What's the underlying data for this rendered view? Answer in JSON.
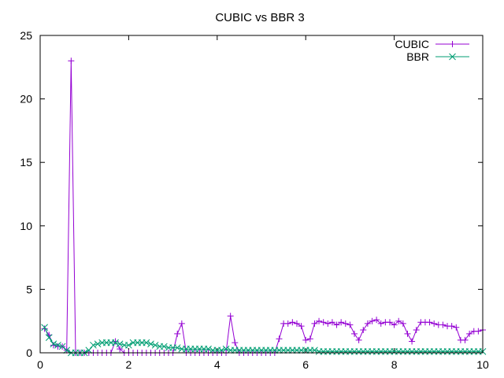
{
  "chart_data": {
    "type": "line",
    "title": "CUBIC vs BBR 3",
    "xlabel": "",
    "ylabel": "",
    "xlim": [
      0,
      10
    ],
    "ylim": [
      0,
      25
    ],
    "xticks": [
      0,
      2,
      4,
      6,
      8,
      10
    ],
    "yticks": [
      0,
      5,
      10,
      15,
      20,
      25
    ],
    "grid": false,
    "legend_position": "top-right",
    "series": [
      {
        "name": "CUBIC",
        "color": "#9400d3",
        "marker": "plus",
        "x": [
          0.1,
          0.2,
          0.3,
          0.4,
          0.5,
          0.6,
          0.7,
          0.8,
          0.9,
          1.0,
          1.1,
          1.2,
          1.3,
          1.4,
          1.5,
          1.6,
          1.7,
          1.8,
          1.9,
          2.0,
          2.1,
          2.2,
          2.3,
          2.4,
          2.5,
          2.6,
          2.7,
          2.8,
          2.9,
          3.0,
          3.1,
          3.2,
          3.3,
          3.4,
          3.5,
          3.6,
          3.7,
          3.8,
          3.9,
          4.0,
          4.1,
          4.2,
          4.3,
          4.4,
          4.5,
          4.6,
          4.7,
          4.8,
          4.9,
          5.0,
          5.1,
          5.2,
          5.3,
          5.4,
          5.5,
          5.6,
          5.7,
          5.8,
          5.9,
          6.0,
          6.1,
          6.2,
          6.3,
          6.4,
          6.5,
          6.6,
          6.7,
          6.8,
          6.9,
          7.0,
          7.1,
          7.2,
          7.3,
          7.4,
          7.5,
          7.6,
          7.7,
          7.8,
          7.9,
          8.0,
          8.1,
          8.2,
          8.3,
          8.4,
          8.5,
          8.6,
          8.7,
          8.8,
          8.9,
          9.0,
          9.1,
          9.2,
          9.3,
          9.4,
          9.5,
          9.6,
          9.7,
          9.8,
          9.9,
          10.0
        ],
        "y": [
          1.9,
          1.4,
          0.6,
          0.5,
          0.5,
          0.2,
          23.0,
          0.0,
          0.0,
          0.0,
          0.0,
          0.0,
          0.0,
          0.0,
          0.0,
          0.0,
          0.9,
          0.3,
          0.0,
          0.0,
          0.0,
          0.0,
          0.0,
          0.0,
          0.0,
          0.0,
          0.0,
          0.0,
          0.0,
          0.0,
          1.5,
          2.3,
          0.0,
          0.0,
          0.0,
          0.0,
          0.0,
          0.0,
          0.0,
          0.0,
          0.0,
          0.0,
          2.9,
          0.8,
          0.0,
          0.0,
          0.0,
          0.0,
          0.0,
          0.0,
          0.0,
          0.0,
          0.0,
          1.1,
          2.3,
          2.3,
          2.4,
          2.3,
          2.1,
          1.0,
          1.1,
          2.3,
          2.5,
          2.4,
          2.3,
          2.4,
          2.2,
          2.4,
          2.3,
          2.2,
          1.5,
          1.0,
          1.8,
          2.3,
          2.5,
          2.6,
          2.3,
          2.4,
          2.4,
          2.2,
          2.5,
          2.3,
          1.5,
          0.9,
          1.8,
          2.4,
          2.4,
          2.4,
          2.3,
          2.2,
          2.2,
          2.1,
          2.1,
          2.0,
          1.0,
          1.0,
          1.5,
          1.7,
          1.7,
          1.8
        ]
      },
      {
        "name": "BBR",
        "color": "#009e73",
        "marker": "cross",
        "x": [
          0.1,
          0.2,
          0.3,
          0.4,
          0.5,
          0.6,
          0.7,
          0.8,
          0.9,
          1.0,
          1.1,
          1.2,
          1.3,
          1.4,
          1.5,
          1.6,
          1.7,
          1.8,
          1.9,
          2.0,
          2.1,
          2.2,
          2.3,
          2.4,
          2.5,
          2.6,
          2.7,
          2.8,
          2.9,
          3.0,
          3.1,
          3.2,
          3.3,
          3.4,
          3.5,
          3.6,
          3.7,
          3.8,
          3.9,
          4.0,
          4.1,
          4.2,
          4.3,
          4.4,
          4.5,
          4.6,
          4.7,
          4.8,
          4.9,
          5.0,
          5.1,
          5.2,
          5.3,
          5.4,
          5.5,
          5.6,
          5.7,
          5.8,
          5.9,
          6.0,
          6.1,
          6.2,
          6.3,
          6.4,
          6.5,
          6.6,
          6.7,
          6.8,
          6.9,
          7.0,
          7.1,
          7.2,
          7.3,
          7.4,
          7.5,
          7.6,
          7.7,
          7.8,
          7.9,
          8.0,
          8.1,
          8.2,
          8.3,
          8.4,
          8.5,
          8.6,
          8.7,
          8.8,
          8.9,
          9.0,
          9.1,
          9.2,
          9.3,
          9.4,
          9.5,
          9.6,
          9.7,
          9.8,
          9.9,
          10.0
        ],
        "y": [
          2.0,
          1.2,
          0.7,
          0.6,
          0.5,
          0.2,
          0.0,
          0.0,
          0.0,
          0.0,
          0.2,
          0.6,
          0.7,
          0.8,
          0.8,
          0.8,
          0.8,
          0.7,
          0.6,
          0.6,
          0.8,
          0.8,
          0.8,
          0.8,
          0.7,
          0.6,
          0.5,
          0.5,
          0.4,
          0.4,
          0.4,
          0.3,
          0.3,
          0.3,
          0.3,
          0.3,
          0.3,
          0.3,
          0.2,
          0.2,
          0.2,
          0.3,
          0.2,
          0.2,
          0.2,
          0.2,
          0.2,
          0.2,
          0.2,
          0.2,
          0.2,
          0.2,
          0.2,
          0.2,
          0.2,
          0.2,
          0.2,
          0.2,
          0.2,
          0.2,
          0.2,
          0.2,
          0.1,
          0.1,
          0.1,
          0.1,
          0.1,
          0.1,
          0.1,
          0.1,
          0.1,
          0.1,
          0.1,
          0.1,
          0.1,
          0.1,
          0.1,
          0.1,
          0.1,
          0.1,
          0.1,
          0.1,
          0.1,
          0.1,
          0.1,
          0.1,
          0.1,
          0.1,
          0.1,
          0.1,
          0.1,
          0.1,
          0.1,
          0.1,
          0.1,
          0.1,
          0.1,
          0.1,
          0.1,
          0.1
        ]
      }
    ]
  }
}
